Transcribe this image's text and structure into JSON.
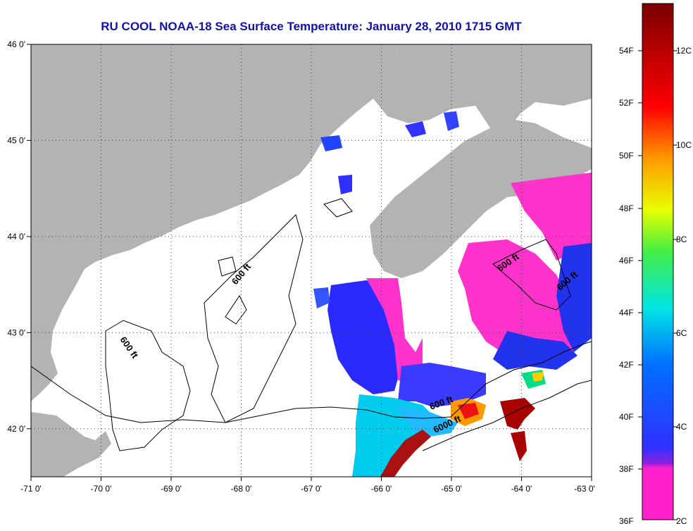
{
  "title": "RU COOL  NOAA-18  Sea Surface Temperature:  January 28, 2010 1715 GMT",
  "map": {
    "lon_range": [
      -71,
      -63
    ],
    "lat_range": [
      41.5,
      46
    ],
    "lon_ticks": [
      "-71 0'",
      "-70 0'",
      "-69 0'",
      "-68 0'",
      "-67 0'",
      "-66 0'",
      "-65 0'",
      "-64 0'",
      "-63 0'"
    ],
    "lat_ticks": [
      "46 0'",
      "45 0'",
      "44 0'",
      "43 0'",
      "42 0'"
    ],
    "grid": "dotted",
    "land_color": "#b3b3b3",
    "cloud_color": "#ffffff",
    "contour_labels": [
      "600 ft",
      "600 ft",
      "600 ft",
      "600 ft",
      "600 ft",
      "6000 ft"
    ]
  },
  "colorbar": {
    "range_c": [
      2,
      13.5
    ],
    "fahrenheit_labels": [
      "54F",
      "52F",
      "50F",
      "48F",
      "46F",
      "44F",
      "42F",
      "40F",
      "38F",
      "36F"
    ],
    "celsius_labels": [
      "12C",
      "10C",
      "8C",
      "6C",
      "4C",
      "2C"
    ],
    "colors": [
      "#ff22cc",
      "#a01ee0",
      "#2222ff",
      "#0088ff",
      "#00e0e0",
      "#33ee55",
      "#ffff00",
      "#ff8800",
      "#ff0000",
      "#b00000",
      "#800000"
    ]
  }
}
